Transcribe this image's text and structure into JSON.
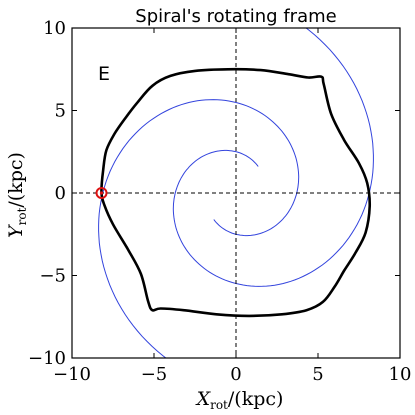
{
  "chart_data": {
    "type": "line",
    "title": "Spiral's rotating frame",
    "panel_label": "E",
    "x_axis": {
      "label_symbol": "X",
      "label_subscript": "rot",
      "label_unit": "/(kpc)",
      "range": [
        -10,
        10
      ],
      "ticks": [
        -10,
        -5,
        0,
        5,
        10
      ],
      "tick_labels": [
        "−10",
        "−5",
        "0",
        "5",
        "10"
      ]
    },
    "y_axis": {
      "label_symbol": "Y",
      "label_subscript": "rot",
      "label_unit": "/(kpc)",
      "range": [
        -10,
        10
      ],
      "ticks": [
        -10,
        -5,
        0,
        5,
        10
      ],
      "tick_labels": [
        "−10",
        "−5",
        "0",
        "5",
        "10"
      ]
    },
    "grid": false,
    "reference_lines": {
      "x": 0,
      "y": 0,
      "style": "dashed"
    },
    "spiral_arms": {
      "color": "#3344dd",
      "arms": 2,
      "radius_law": "r = a * exp(b * theta)",
      "a": 1.3,
      "b": 0.25,
      "arm_start_angles_deg": [
        120,
        300
      ],
      "r_min": 2.1,
      "r_max": 17
    },
    "orbit": {
      "color": "#000000",
      "points": [
        [
          -8.2,
          0.0
        ],
        [
          -8.1,
          1.4
        ],
        [
          -7.9,
          2.6
        ],
        [
          -7.4,
          3.6
        ],
        [
          -6.7,
          4.6
        ],
        [
          -6.0,
          5.5
        ],
        [
          -5.1,
          6.5
        ],
        [
          -4.0,
          7.1
        ],
        [
          -2.5,
          7.4
        ],
        [
          -0.5,
          7.5
        ],
        [
          1.5,
          7.45
        ],
        [
          3.2,
          7.2
        ],
        [
          4.4,
          7.0
        ],
        [
          5.2,
          7.05
        ],
        [
          5.35,
          6.6
        ],
        [
          5.8,
          4.8
        ],
        [
          6.6,
          3.2
        ],
        [
          7.5,
          1.8
        ],
        [
          8.0,
          0.6
        ],
        [
          8.15,
          -0.8
        ],
        [
          7.9,
          -2.4
        ],
        [
          7.3,
          -3.6
        ],
        [
          6.6,
          -4.7
        ],
        [
          6.0,
          -5.7
        ],
        [
          5.3,
          -6.6
        ],
        [
          4.3,
          -7.1
        ],
        [
          2.8,
          -7.35
        ],
        [
          0.8,
          -7.45
        ],
        [
          -1.2,
          -7.35
        ],
        [
          -3.2,
          -7.1
        ],
        [
          -4.6,
          -7.0
        ],
        [
          -5.1,
          -7.1
        ],
        [
          -5.35,
          -6.6
        ],
        [
          -5.8,
          -4.9
        ],
        [
          -6.6,
          -3.4
        ],
        [
          -7.5,
          -1.9
        ],
        [
          -8.0,
          -0.8
        ],
        [
          -8.2,
          0.0
        ]
      ]
    },
    "marker": {
      "x": -8.2,
      "y": 0.0,
      "color": "#dd1111",
      "style": "circled dot"
    }
  }
}
